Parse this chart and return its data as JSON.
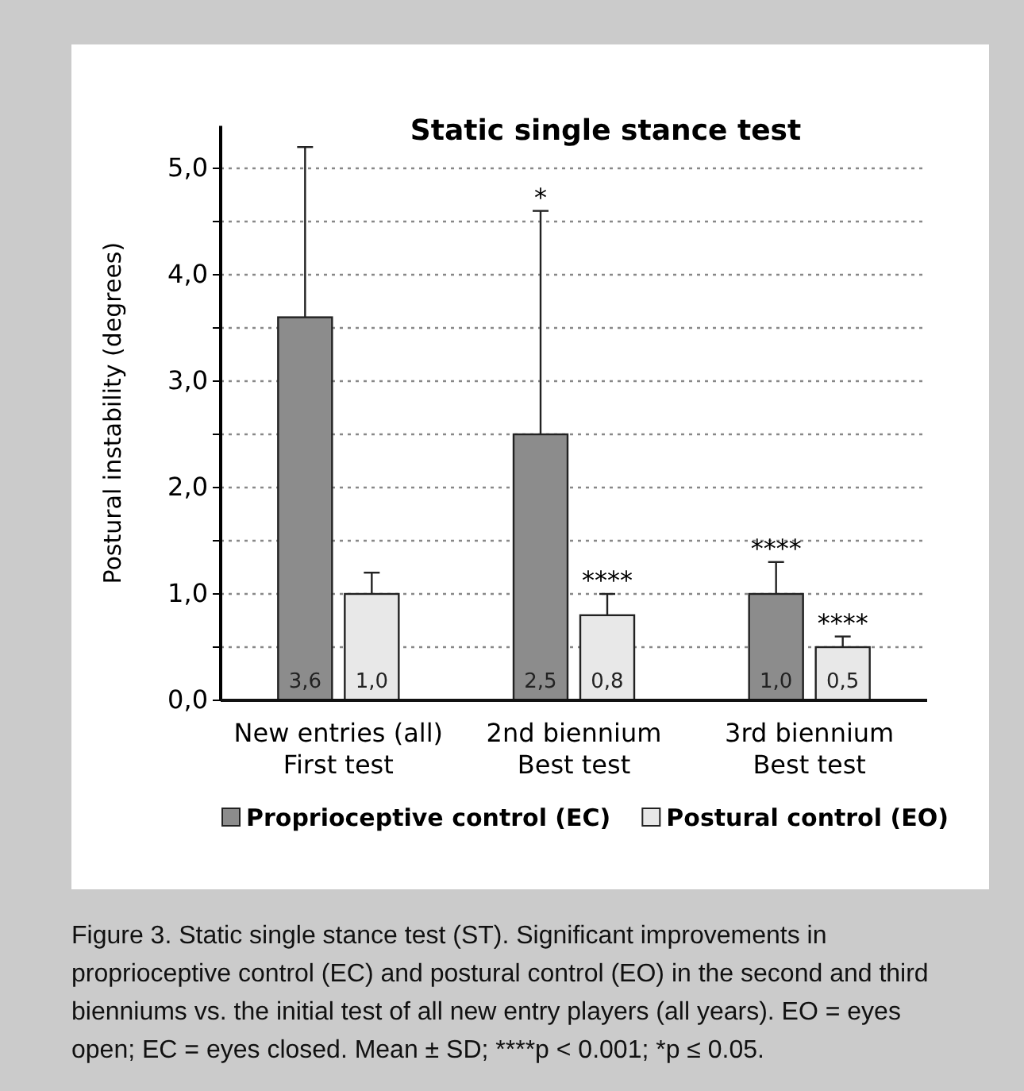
{
  "chart_data": {
    "type": "bar",
    "title": "Static single stance test",
    "ylabel": "Postural instability (degrees)",
    "categories": [
      "New entries (all)\nFirst test",
      "2nd biennium\nBest test",
      "3rd biennium\nBest test"
    ],
    "series": [
      {
        "name": "Proprioceptive control (EC)",
        "color": "#8c8c8c",
        "values": [
          3.6,
          2.5,
          1.0
        ],
        "value_labels": [
          "3,6",
          "2,5",
          "1,0"
        ],
        "errors": [
          [
            3.6,
            5.2
          ],
          [
            2.5,
            4.6
          ],
          [
            1.0,
            1.3
          ]
        ]
      },
      {
        "name": "Postural control (EO)",
        "color": "#e8e8e8",
        "values": [
          1.0,
          0.8,
          0.5
        ],
        "value_labels": [
          "1,0",
          "0,8",
          "0,5"
        ],
        "errors": [
          [
            1.0,
            1.2
          ],
          [
            0.8,
            1.0
          ],
          [
            0.5,
            0.6
          ]
        ]
      }
    ],
    "ylim": [
      0,
      5.4
    ],
    "yticks": [
      {
        "value": 0,
        "label": "0,0"
      },
      {
        "value": 0.5,
        "label": null
      },
      {
        "value": 1,
        "label": "1,0"
      },
      {
        "value": 1.5,
        "label": null
      },
      {
        "value": 2,
        "label": "2,0"
      },
      {
        "value": 2.5,
        "label": null
      },
      {
        "value": 3,
        "label": "3,0"
      },
      {
        "value": 3.5,
        "label": null
      },
      {
        "value": 4,
        "label": "4,0"
      },
      {
        "value": 4.5,
        "label": null
      },
      {
        "value": 5,
        "label": "5,0"
      }
    ],
    "grid": "y",
    "legend": "bottom",
    "annotations": [
      "*",
      "****",
      "****",
      "****",
      "Figure 3. Static single stance test (ST). Significant improvements in proprioceptive control (EC) and postural control (EO) in the second and third bienniums vs. the initial test of all new entry players (all years). EO = eyes open; EC = eyes closed. Mean ± SD; ****p < 0.001; *p ≤ 0.05."
    ]
  }
}
